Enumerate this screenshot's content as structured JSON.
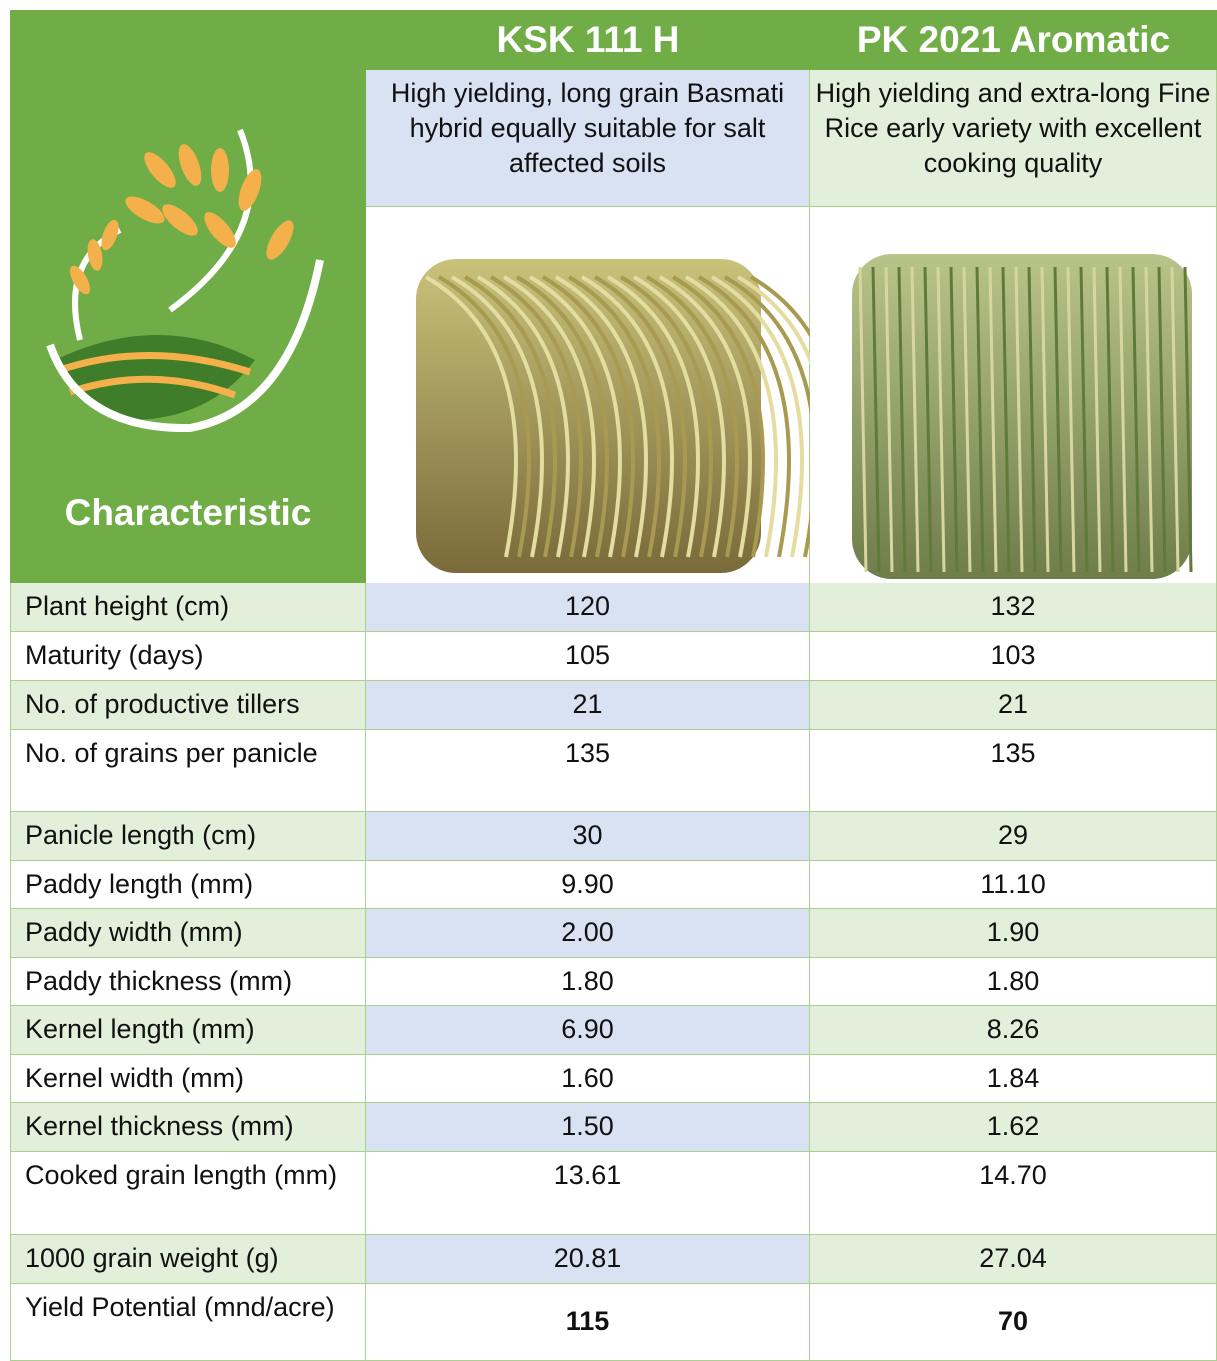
{
  "header": {
    "characteristic": "Characteristic",
    "columns": [
      {
        "name": "KSK 111 H",
        "description": "High yielding, long grain Basmati hybrid equally suitable for salt affected soils"
      },
      {
        "name": "PK 2021 Aromatic",
        "description": "High yielding and extra-long Fine Rice early variety with excellent cooking quality"
      }
    ]
  },
  "table": {
    "rows": [
      [
        "Plant height (cm)",
        "120",
        "132"
      ],
      [
        "Maturity (days)",
        "105",
        "103"
      ],
      [
        "No. of productive tillers",
        "21",
        "21"
      ],
      [
        "No. of grains per panicle",
        "135",
        "135"
      ],
      [
        "Panicle length (cm)",
        "30",
        "29"
      ],
      [
        "Paddy length (mm)",
        "9.90",
        "11.10"
      ],
      [
        "Paddy width (mm)",
        "2.00",
        "1.90"
      ],
      [
        "Paddy thickness (mm)",
        "1.80",
        "1.80"
      ],
      [
        "Kernel length (mm)",
        "6.90",
        "8.26"
      ],
      [
        "Kernel width (mm)",
        "1.60",
        "1.84"
      ],
      [
        "Kernel thickness (mm)",
        "1.50",
        "1.62"
      ],
      [
        "Cooked grain length (mm)",
        "13.61",
        "14.70"
      ],
      [
        "1000 grain weight (g)",
        "20.81",
        "27.04"
      ],
      [
        "Yield Potential (mnd/acre)",
        "115",
        "70"
      ]
    ]
  }
}
